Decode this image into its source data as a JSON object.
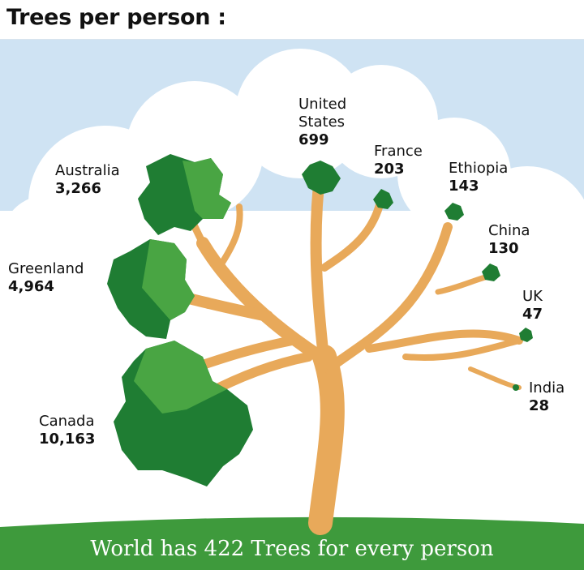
{
  "title": "Trees per person :",
  "footer": "World has 422 Trees for every person",
  "chart_data": {
    "type": "infographic",
    "categories": [
      "Canada",
      "Greenland",
      "Australia",
      "United States",
      "France",
      "Ethiopia",
      "China",
      "UK",
      "India"
    ],
    "values": [
      10163,
      4964,
      3266,
      699,
      203,
      143,
      130,
      47,
      28
    ],
    "value_labels": [
      "10,163",
      "4,964",
      "3,266",
      "699",
      "203",
      "143",
      "130",
      "47",
      "28"
    ],
    "world_value": 422
  },
  "labels": [
    {
      "name": "Australia",
      "value": "3,266"
    },
    {
      "name": "Greenland",
      "value": "4,964"
    },
    {
      "name": "Canada",
      "value": "10,163"
    },
    {
      "name": "United States",
      "name_lines": [
        "United",
        "States"
      ],
      "value": "699"
    },
    {
      "name": "France",
      "value": "203"
    },
    {
      "name": "Ethiopia",
      "value": "143"
    },
    {
      "name": "China",
      "value": "130"
    },
    {
      "name": "UK",
      "value": "47"
    },
    {
      "name": "India",
      "value": "28"
    }
  ],
  "colors": {
    "sky": "#cfe3f3",
    "cloud": "#ffffff",
    "trunk": "#e8a95a",
    "leaf_dark": "#1f7d33",
    "leaf_light": "#49a543",
    "grass": "#3e9a3c"
  }
}
